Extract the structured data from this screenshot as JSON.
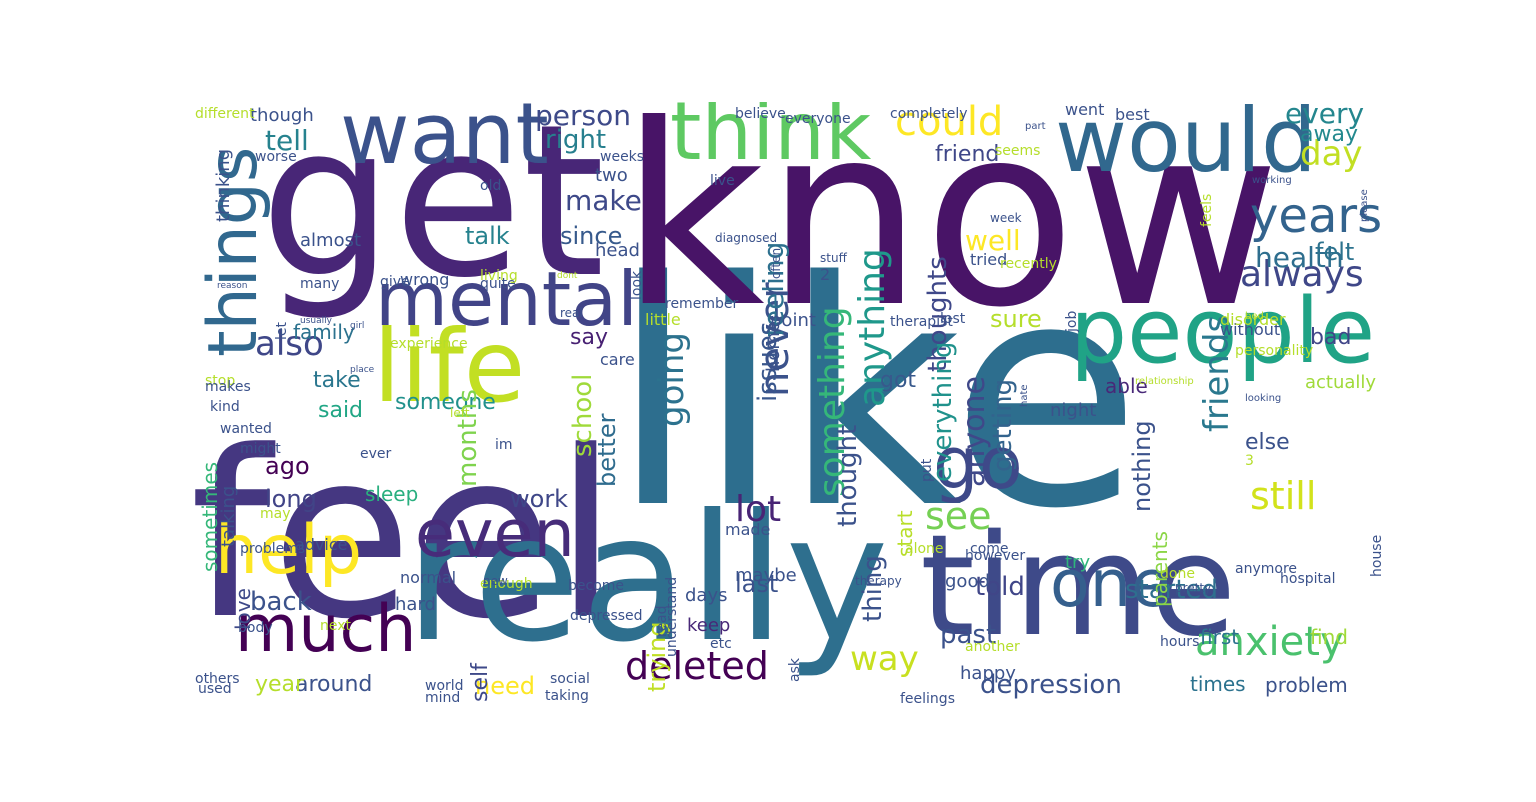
{
  "wordcloud": {
    "words": [
      {
        "text": "like",
        "color": "#2d6e8e"
      },
      {
        "text": "feel",
        "color": "#453781"
      },
      {
        "text": "know",
        "color": "#481467"
      },
      {
        "text": "get",
        "color": "#482677"
      },
      {
        "text": "really",
        "color": "#2e6f8e"
      },
      {
        "text": "time",
        "color": "#3e4a89"
      },
      {
        "text": "want",
        "color": "#3b528b"
      },
      {
        "text": "would",
        "color": "#31688e"
      },
      {
        "text": "think",
        "color": "#5ec962"
      },
      {
        "text": "people",
        "color": "#20a386"
      },
      {
        "text": "life",
        "color": "#c2df23"
      },
      {
        "text": "mental",
        "color": "#414487"
      },
      {
        "text": "things",
        "color": "#31688e"
      },
      {
        "text": "help",
        "color": "#fde725"
      },
      {
        "text": "even",
        "color": "#472c7a"
      },
      {
        "text": "much",
        "color": "#440154"
      },
      {
        "text": "one",
        "color": "#355f8d"
      },
      {
        "text": "go",
        "color": "#3e4989"
      },
      {
        "text": "anxiety",
        "color": "#4ac16d"
      },
      {
        "text": "deleted",
        "color": "#440154"
      },
      {
        "text": "years",
        "color": "#33638d"
      },
      {
        "text": "could",
        "color": "#fde725"
      },
      {
        "text": "still",
        "color": "#d2e21b"
      },
      {
        "text": "always",
        "color": "#3f4788"
      },
      {
        "text": "something",
        "color": "#35b779"
      },
      {
        "text": "anything",
        "color": "#1f988b"
      },
      {
        "text": "going",
        "color": "#2c728e"
      },
      {
        "text": "never",
        "color": "#3b528b"
      },
      {
        "text": "friends",
        "color": "#2a788e"
      },
      {
        "text": "way",
        "color": "#c8e020"
      },
      {
        "text": "see",
        "color": "#75d054"
      },
      {
        "text": "also",
        "color": "#3f4788"
      },
      {
        "text": "day",
        "color": "#c2df23"
      },
      {
        "text": "person",
        "color": "#3e4a89"
      },
      {
        "text": "right",
        "color": "#277f8e"
      },
      {
        "text": "tell",
        "color": "#26828e"
      },
      {
        "text": "make",
        "color": "#3e4989"
      },
      {
        "text": "since",
        "color": "#375a8c"
      },
      {
        "text": "talk",
        "color": "#26828e"
      },
      {
        "text": "feeling",
        "color": "#2d708e"
      },
      {
        "text": "thoughts",
        "color": "#3f4889"
      },
      {
        "text": "well",
        "color": "#fde725"
      },
      {
        "text": "health",
        "color": "#2e6e8e"
      },
      {
        "text": "felt",
        "color": "#2c728e"
      },
      {
        "text": "every",
        "color": "#24868e"
      },
      {
        "text": "away",
        "color": "#23898e"
      },
      {
        "text": "friend",
        "color": "#3f4788"
      },
      {
        "text": "lot",
        "color": "#482475"
      },
      {
        "text": "issues",
        "color": "#39568c"
      },
      {
        "text": "thought",
        "color": "#3b528b"
      },
      {
        "text": "anyone",
        "color": "#3f4889"
      },
      {
        "text": "everything",
        "color": "#20928c"
      },
      {
        "text": "getting",
        "color": "#33638d"
      },
      {
        "text": "sure",
        "color": "#b5de2b"
      },
      {
        "text": "got",
        "color": "#38598c"
      },
      {
        "text": "bad",
        "color": "#404588"
      },
      {
        "text": "school",
        "color": "#9fda3a"
      },
      {
        "text": "someone",
        "color": "#21918c"
      },
      {
        "text": "said",
        "color": "#21a685"
      },
      {
        "text": "take",
        "color": "#2a768e"
      },
      {
        "text": "say",
        "color": "#482173"
      },
      {
        "text": "family",
        "color": "#2c728e"
      },
      {
        "text": "ago",
        "color": "#440154"
      },
      {
        "text": "long",
        "color": "#414487"
      },
      {
        "text": "work",
        "color": "#3f4788"
      },
      {
        "text": "months",
        "color": "#7fd34e"
      },
      {
        "text": "better",
        "color": "#2f6c8e"
      },
      {
        "text": "sleep",
        "color": "#29af7f"
      },
      {
        "text": "back",
        "color": "#3b528b"
      },
      {
        "text": "last",
        "color": "#3b528b"
      },
      {
        "text": "told",
        "color": "#404688"
      },
      {
        "text": "started",
        "color": "#2e6f8e"
      },
      {
        "text": "past",
        "color": "#3b528b"
      },
      {
        "text": "thing",
        "color": "#3b528b"
      },
      {
        "text": "start",
        "color": "#b8de29"
      },
      {
        "text": "depression",
        "color": "#3b528b"
      },
      {
        "text": "around",
        "color": "#3b528b"
      },
      {
        "text": "need",
        "color": "#fde725"
      },
      {
        "text": "year",
        "color": "#b5de2b"
      },
      {
        "text": "self",
        "color": "#3e4989"
      },
      {
        "text": "trying",
        "color": "#c0df25"
      },
      {
        "text": "love",
        "color": "#3e4989"
      },
      {
        "text": "sometimes",
        "color": "#35b779"
      },
      {
        "text": "talking",
        "color": "#3b528b"
      },
      {
        "text": "nothing",
        "color": "#3b528b"
      },
      {
        "text": "else",
        "color": "#3b528b"
      },
      {
        "text": "parents",
        "color": "#8bd646"
      },
      {
        "text": "first",
        "color": "#2c728e"
      },
      {
        "text": "find",
        "color": "#a0da39"
      },
      {
        "text": "times",
        "color": "#2c728e"
      },
      {
        "text": "problem",
        "color": "#3b528b"
      },
      {
        "text": "able",
        "color": "#482878"
      },
      {
        "text": "actually",
        "color": "#a0da39"
      },
      {
        "text": "night",
        "color": "#3b528b"
      },
      {
        "text": "try",
        "color": "#2fb47c"
      },
      {
        "text": "days",
        "color": "#3b528b"
      },
      {
        "text": "keep",
        "color": "#482878"
      },
      {
        "text": "good",
        "color": "#3b528b"
      },
      {
        "text": "hard",
        "color": "#3b528b"
      },
      {
        "text": "normal",
        "color": "#3b528b"
      },
      {
        "text": "happy",
        "color": "#3b528b"
      },
      {
        "text": "maybe",
        "color": "#3b528b"
      },
      {
        "text": "made",
        "color": "#3b528b"
      },
      {
        "text": "wrong",
        "color": "#3b528b"
      },
      {
        "text": "head",
        "color": "#3b528b"
      },
      {
        "text": "almost",
        "color": "#3b528b"
      },
      {
        "text": "though",
        "color": "#3b528b"
      },
      {
        "text": "two",
        "color": "#3b528b"
      },
      {
        "text": "care",
        "color": "#3b528b"
      },
      {
        "text": "home",
        "color": "#3b528b"
      },
      {
        "text": "point",
        "color": "#3b528b"
      },
      {
        "text": "tried",
        "color": "#3b528b"
      },
      {
        "text": "2",
        "color": "#3b528b"
      },
      {
        "text": "went",
        "color": "#3b528b"
      },
      {
        "text": "without",
        "color": "#3b528b"
      },
      {
        "text": "disorder",
        "color": "#b5de2b"
      },
      {
        "text": "little",
        "color": "#b5de2b"
      },
      {
        "text": "thinking",
        "color": "#3b528b"
      },
      {
        "text": "advice",
        "color": "#3b528b"
      },
      {
        "text": "problems",
        "color": "#3b528b"
      },
      {
        "text": "may",
        "color": "#b5de2b"
      },
      {
        "text": "ever",
        "color": "#3b528b"
      },
      {
        "text": "might",
        "color": "#3b528b"
      },
      {
        "text": "wanted",
        "color": "#3b528b"
      },
      {
        "text": "kind",
        "color": "#3b528b"
      },
      {
        "text": "stop",
        "color": "#b5de2b"
      },
      {
        "text": "makes",
        "color": "#3b528b"
      },
      {
        "text": "different",
        "color": "#b5de2b"
      },
      {
        "text": "worse",
        "color": "#3b528b"
      },
      {
        "text": "old",
        "color": "#3b528b"
      },
      {
        "text": "many",
        "color": "#3b528b"
      },
      {
        "text": "give",
        "color": "#3b528b"
      },
      {
        "text": "quite",
        "color": "#3b528b"
      },
      {
        "text": "living",
        "color": "#b5de2b"
      },
      {
        "text": "experience",
        "color": "#b5de2b"
      },
      {
        "text": "let",
        "color": "#3b528b"
      },
      {
        "text": "left",
        "color": "#b5de2b"
      },
      {
        "text": "im",
        "color": "#3b528b"
      },
      {
        "text": "come",
        "color": "#3b528b"
      },
      {
        "text": "however",
        "color": "#3b528b"
      },
      {
        "text": "alone",
        "color": "#b5de2b"
      },
      {
        "text": "enough",
        "color": "#b5de2b"
      },
      {
        "text": "become",
        "color": "#3b528b"
      },
      {
        "text": "depressed",
        "color": "#3b528b"
      },
      {
        "text": "next",
        "color": "#b5de2b"
      },
      {
        "text": "body",
        "color": "#3b528b"
      },
      {
        "text": "others",
        "color": "#3b528b"
      },
      {
        "text": "used",
        "color": "#3b528b"
      },
      {
        "text": "world",
        "color": "#3b528b"
      },
      {
        "text": "mind",
        "color": "#3b528b"
      },
      {
        "text": "social",
        "color": "#3b528b"
      },
      {
        "text": "taking",
        "color": "#3b528b"
      },
      {
        "text": "etc",
        "color": "#3b528b"
      },
      {
        "text": "another",
        "color": "#b5de2b"
      },
      {
        "text": "feelings",
        "color": "#3b528b"
      },
      {
        "text": "understand",
        "color": "#3b528b"
      },
      {
        "text": "ask",
        "color": "#3b528b"
      },
      {
        "text": "hours",
        "color": "#3b528b"
      },
      {
        "text": "done",
        "color": "#b5de2b"
      },
      {
        "text": "pretty",
        "color": "#3b528b"
      },
      {
        "text": "anymore",
        "color": "#3b528b"
      },
      {
        "text": "hospital",
        "color": "#3b528b"
      },
      {
        "text": "house",
        "color": "#3b528b"
      },
      {
        "text": "3",
        "color": "#b5de2b"
      },
      {
        "text": "therapy",
        "color": "#3b528b"
      },
      {
        "text": "put",
        "color": "#3b528b"
      },
      {
        "text": "new",
        "color": "#3b528b"
      },
      {
        "text": "read",
        "color": "#3b528b"
      },
      {
        "text": "believe",
        "color": "#3b528b"
      },
      {
        "text": "everyone",
        "color": "#3b528b"
      },
      {
        "text": "completely",
        "color": "#3b528b"
      },
      {
        "text": "best",
        "color": "#3b528b"
      },
      {
        "text": "weeks",
        "color": "#3b528b"
      },
      {
        "text": "live",
        "color": "#3b528b"
      },
      {
        "text": "seems",
        "color": "#b5de2b"
      },
      {
        "text": "part",
        "color": "#3b528b"
      },
      {
        "text": "working",
        "color": "#3b528b"
      },
      {
        "text": "please",
        "color": "#3b528b"
      },
      {
        "text": "feels",
        "color": "#b5de2b"
      },
      {
        "text": "week",
        "color": "#3b528b"
      },
      {
        "text": "diagnosed",
        "color": "#3b528b"
      },
      {
        "text": "often",
        "color": "#3b528b"
      },
      {
        "text": "stuff",
        "color": "#3b528b"
      },
      {
        "text": "recently",
        "color": "#b5de2b"
      },
      {
        "text": "job",
        "color": "#3b528b"
      },
      {
        "text": "lost",
        "color": "#3b528b"
      },
      {
        "text": "therapist",
        "color": "#3b528b"
      },
      {
        "text": "look",
        "color": "#3b528b"
      },
      {
        "text": "remember",
        "color": "#3b528b"
      },
      {
        "text": "dont",
        "color": "#b5de2b"
      },
      {
        "text": "real",
        "color": "#3b528b"
      },
      {
        "text": "reason",
        "color": "#3b528b"
      },
      {
        "text": "usually",
        "color": "#3b528b"
      },
      {
        "text": "girl",
        "color": "#3b528b"
      },
      {
        "text": "place",
        "color": "#3b528b"
      },
      {
        "text": "bed",
        "color": "#b5de2b"
      },
      {
        "text": "personality",
        "color": "#b5de2b"
      },
      {
        "text": "relationship",
        "color": "#b5de2b"
      },
      {
        "text": "hate",
        "color": "#3b528b"
      },
      {
        "text": "looking",
        "color": "#3b528b"
      }
    ]
  }
}
